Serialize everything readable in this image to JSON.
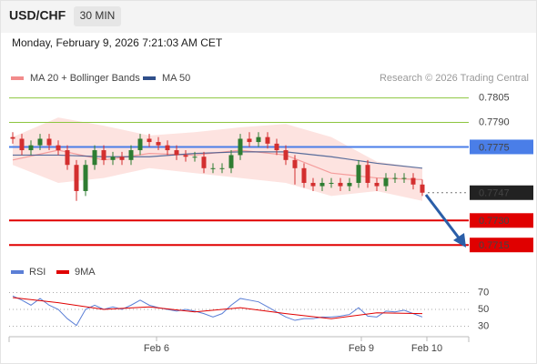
{
  "header": {
    "symbol": "USD/CHF",
    "timeframe": "30 MIN",
    "datetime": "Monday, February 9, 2026 7:21:03 AM CET"
  },
  "chart_data": [
    {
      "type": "candlestick",
      "source": "Research © 2026 Trading Central",
      "xlim": [
        -0.4,
        50.1
      ],
      "ylim": [
        0.7709,
        0.7812
      ],
      "up_color": "#2e7d32",
      "down_color": "#d32f2f",
      "x": [
        0,
        1,
        2,
        3,
        4,
        5,
        6,
        7,
        8,
        9,
        10,
        11,
        12,
        13,
        14,
        15,
        16,
        17,
        18,
        19,
        20,
        21,
        22,
        23,
        24,
        25,
        26,
        27,
        28,
        29,
        30,
        31,
        32,
        33,
        34,
        35,
        36,
        37,
        38,
        39,
        40,
        41,
        42,
        43,
        44,
        45
      ],
      "open": [
        0.7781,
        0.778,
        0.7773,
        0.7776,
        0.778,
        0.7776,
        0.7773,
        0.7764,
        0.7748,
        0.7764,
        0.7773,
        0.7767,
        0.7769,
        0.7767,
        0.7773,
        0.778,
        0.7778,
        0.7776,
        0.7773,
        0.777,
        0.7769,
        0.7769,
        0.7762,
        0.7762,
        0.7762,
        0.777,
        0.778,
        0.7778,
        0.7781,
        0.7777,
        0.7773,
        0.7767,
        0.7762,
        0.7753,
        0.7751,
        0.7753,
        0.7753,
        0.7751,
        0.7753,
        0.7764,
        0.7753,
        0.7751,
        0.7756,
        0.7756,
        0.7756,
        0.7752
      ],
      "high": [
        0.7784,
        0.7783,
        0.7779,
        0.7783,
        0.7783,
        0.7779,
        0.7776,
        0.7767,
        0.7767,
        0.7776,
        0.7776,
        0.7772,
        0.7772,
        0.7776,
        0.7783,
        0.7783,
        0.7781,
        0.7779,
        0.7776,
        0.7773,
        0.7772,
        0.7772,
        0.7765,
        0.7765,
        0.7773,
        0.7783,
        0.7784,
        0.7784,
        0.7784,
        0.778,
        0.7776,
        0.777,
        0.7765,
        0.7756,
        0.7756,
        0.7756,
        0.7756,
        0.7756,
        0.7767,
        0.7767,
        0.7756,
        0.7759,
        0.7759,
        0.7759,
        0.7759,
        0.7755
      ],
      "low": [
        0.7777,
        0.777,
        0.777,
        0.7773,
        0.7773,
        0.777,
        0.7761,
        0.7742,
        0.7745,
        0.7761,
        0.7764,
        0.7764,
        0.7764,
        0.7764,
        0.777,
        0.7775,
        0.7773,
        0.777,
        0.7767,
        0.7766,
        0.7766,
        0.7759,
        0.7759,
        0.7759,
        0.7759,
        0.7767,
        0.7775,
        0.7775,
        0.7774,
        0.777,
        0.7764,
        0.7752,
        0.775,
        0.7748,
        0.7748,
        0.775,
        0.7748,
        0.7748,
        0.775,
        0.775,
        0.7748,
        0.7748,
        0.7753,
        0.7753,
        0.7749,
        0.7745
      ],
      "close": [
        0.778,
        0.7773,
        0.7776,
        0.778,
        0.7776,
        0.7773,
        0.7764,
        0.7748,
        0.7764,
        0.7773,
        0.7767,
        0.7769,
        0.7767,
        0.7773,
        0.778,
        0.7778,
        0.7776,
        0.7773,
        0.777,
        0.7769,
        0.7769,
        0.7762,
        0.7762,
        0.7762,
        0.777,
        0.778,
        0.7778,
        0.7781,
        0.7777,
        0.7773,
        0.7767,
        0.7762,
        0.7753,
        0.7751,
        0.7753,
        0.7753,
        0.7751,
        0.7753,
        0.7764,
        0.7753,
        0.7751,
        0.7756,
        0.7756,
        0.7756,
        0.7752,
        0.7747
      ],
      "overlays": [
        {
          "name": "MA 20 + Bollinger Bands",
          "color": "#f28b8b",
          "band_color": "#fde3e0",
          "x": [
            0,
            5,
            10,
            15,
            20,
            25,
            30,
            35,
            40,
            45
          ],
          "values": [
            0.7767,
            0.7773,
            0.7767,
            0.7771,
            0.777,
            0.7773,
            0.777,
            0.7759,
            0.7756,
            0.7755
          ],
          "upper": [
            0.7781,
            0.7793,
            0.7788,
            0.7782,
            0.7784,
            0.7787,
            0.7789,
            0.7781,
            0.7766,
            0.7762
          ],
          "lower": [
            0.7764,
            0.7753,
            0.7756,
            0.7762,
            0.7759,
            0.7756,
            0.7753,
            0.7745,
            0.7748,
            0.7742
          ]
        },
        {
          "name": "MA 50",
          "color": "#2f4f8a",
          "x": [
            0,
            5,
            10,
            15,
            20,
            25,
            30,
            35,
            40,
            45
          ],
          "values": [
            0.777,
            0.777,
            0.7769,
            0.7769,
            0.7771,
            0.7772,
            0.7772,
            0.7769,
            0.7765,
            0.7762
          ]
        }
      ],
      "levels": [
        {
          "value": 0.7805,
          "color": "#8dc63f",
          "line": "solid",
          "boxed": false
        },
        {
          "value": 0.779,
          "label": "0.7790",
          "color": "#8dc63f",
          "line": "solid",
          "boxed": false
        },
        {
          "value": 0.7775,
          "color": "#4a7ee8",
          "line": "solid",
          "boxed": true
        },
        {
          "value": 0.7747,
          "color": "#222222",
          "line": "dotted",
          "boxed": true
        },
        {
          "value": 0.773,
          "label": "0.7730",
          "color": "#e00000",
          "line": "solid",
          "boxed": true
        },
        {
          "value": 0.7715,
          "color": "#e00000",
          "line": "solid",
          "boxed": true
        }
      ]
    },
    {
      "type": "line",
      "xlim": [
        -0.4,
        50.1
      ],
      "ylim": [
        23,
        77
      ],
      "yticks": [
        30,
        50,
        70
      ],
      "grid": true,
      "xticks": [
        {
          "value": 15.8,
          "label": "Feb 6"
        },
        {
          "value": 38.3,
          "label": "Feb 9"
        },
        {
          "value": 45.5,
          "label": "Feb 10"
        }
      ],
      "series": [
        {
          "name": "RSI",
          "color": "#5b7fd6",
          "x": [
            0,
            1,
            2,
            3,
            4,
            5,
            6,
            7,
            8,
            9,
            10,
            11,
            12,
            13,
            14,
            15,
            16,
            17,
            18,
            19,
            20,
            21,
            22,
            23,
            24,
            25,
            26,
            27,
            28,
            29,
            30,
            31,
            32,
            33,
            34,
            35,
            36,
            37,
            38,
            39,
            40,
            41,
            42,
            43,
            44,
            45
          ],
          "values": [
            66,
            61,
            55,
            63,
            55,
            50,
            39,
            31,
            50,
            55,
            50,
            53,
            50,
            55,
            61,
            55,
            52,
            50,
            48,
            50,
            48,
            45,
            41,
            45,
            55,
            63,
            61,
            59,
            53,
            47,
            41,
            37,
            39,
            39,
            41,
            41,
            42,
            44,
            52,
            42,
            41,
            48,
            47,
            49,
            45,
            41
          ]
        },
        {
          "name": "9MA",
          "color": "#e00000",
          "x": [
            0,
            5,
            10,
            15,
            20,
            25,
            30,
            35,
            40,
            45
          ],
          "values": [
            64,
            58,
            50,
            53,
            47,
            52,
            45,
            39,
            46,
            45
          ]
        }
      ]
    }
  ]
}
